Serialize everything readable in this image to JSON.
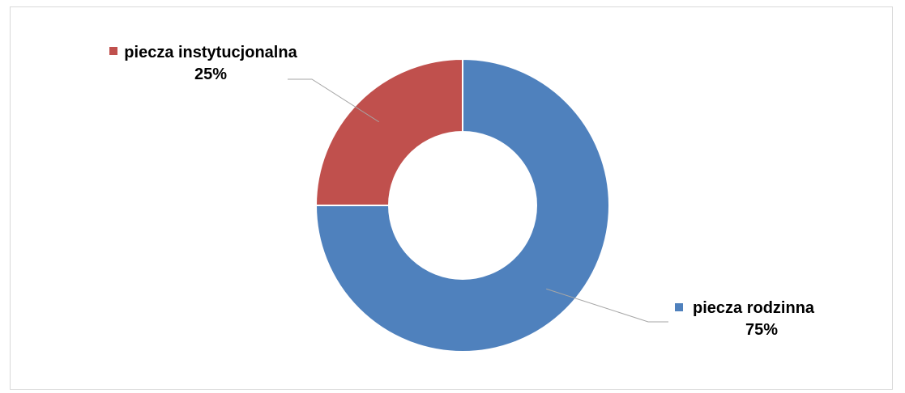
{
  "chart_data": {
    "type": "pie",
    "donut": true,
    "title": "",
    "slices": [
      {
        "label": "piecza rodzinna",
        "value": 75,
        "value_label": "75%",
        "color": "#4f81bd"
      },
      {
        "label": "piecza instytucjonalna",
        "value": 25,
        "value_label": "25%",
        "color": "#c0504d"
      }
    ],
    "legend": "none",
    "data_labels": "outside-with-leader-lines"
  }
}
